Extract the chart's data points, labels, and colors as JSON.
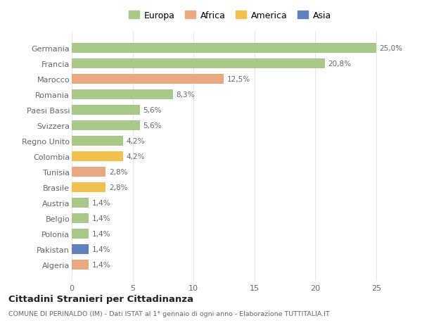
{
  "countries": [
    "Germania",
    "Francia",
    "Marocco",
    "Romania",
    "Paesi Bassi",
    "Svizzera",
    "Regno Unito",
    "Colombia",
    "Tunisia",
    "Brasile",
    "Austria",
    "Belgio",
    "Polonia",
    "Pakistan",
    "Algeria"
  ],
  "values": [
    25.0,
    20.8,
    12.5,
    8.3,
    5.6,
    5.6,
    4.2,
    4.2,
    2.8,
    2.8,
    1.4,
    1.4,
    1.4,
    1.4,
    1.4
  ],
  "labels": [
    "25,0%",
    "20,8%",
    "12,5%",
    "8,3%",
    "5,6%",
    "5,6%",
    "4,2%",
    "4,2%",
    "2,8%",
    "2,8%",
    "1,4%",
    "1,4%",
    "1,4%",
    "1,4%",
    "1,4%"
  ],
  "continents": [
    "Europa",
    "Europa",
    "Africa",
    "Europa",
    "Europa",
    "Europa",
    "Europa",
    "America",
    "Africa",
    "America",
    "Europa",
    "Europa",
    "Europa",
    "Asia",
    "Africa"
  ],
  "colors": {
    "Europa": "#a8c88a",
    "Africa": "#e8a882",
    "America": "#f0c050",
    "Asia": "#6080c0"
  },
  "legend_order": [
    "Europa",
    "Africa",
    "America",
    "Asia"
  ],
  "bg_color": "#ffffff",
  "grid_color": "#e8e8e8",
  "title": "Cittadini Stranieri per Cittadinanza",
  "subtitle": "COMUNE DI PERINALDO (IM) - Dati ISTAT al 1° gennaio di ogni anno - Elaborazione TUTTITALIA.IT",
  "xlim": [
    0,
    26
  ],
  "xticks": [
    0,
    5,
    10,
    15,
    20,
    25
  ],
  "bar_height": 0.65
}
